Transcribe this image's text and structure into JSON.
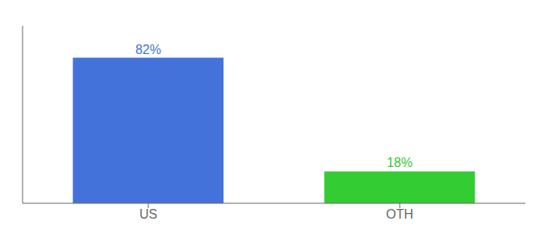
{
  "chart_data": {
    "type": "bar",
    "categories": [
      "US",
      "OTH"
    ],
    "values": [
      82,
      18
    ],
    "value_labels": [
      "82%",
      "18%"
    ],
    "colors": [
      "#4472db",
      "#33cc33"
    ],
    "ylim": [
      0,
      100
    ],
    "data_labels": true,
    "tick_labels": "x",
    "grid": false
  }
}
